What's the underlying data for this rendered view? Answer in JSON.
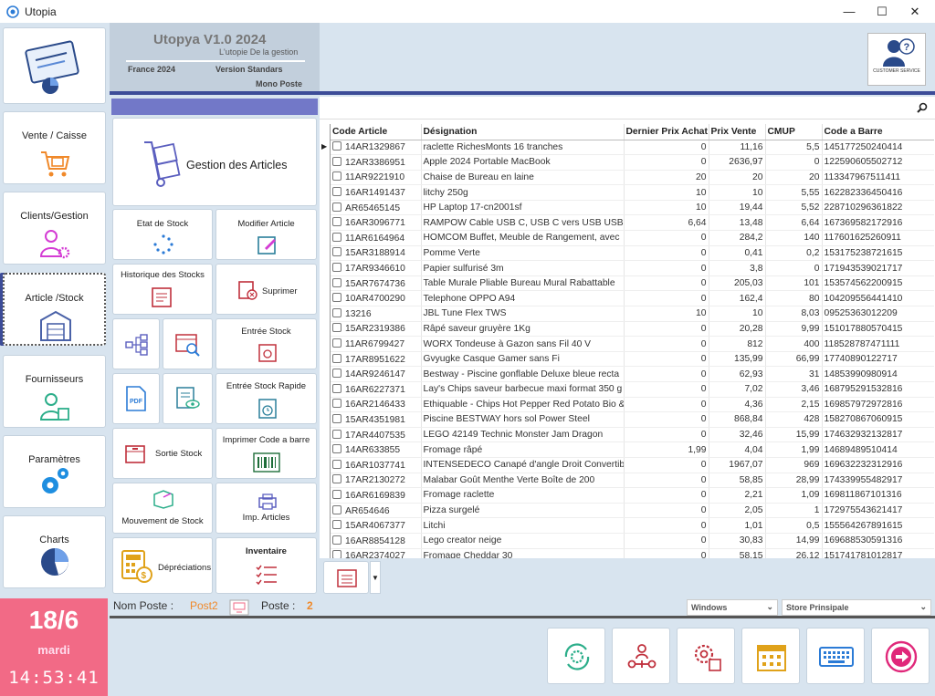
{
  "window": {
    "title": "Utopia",
    "minimize": "—",
    "maximize": "☐",
    "close": "✕"
  },
  "sidebar": {
    "items": [
      {
        "label": "Vente / Caisse"
      },
      {
        "label": "Clients/Gestion"
      },
      {
        "label": "Article /Stock"
      },
      {
        "label": "Fournisseurs"
      },
      {
        "label": "Paramètres"
      },
      {
        "label": "Charts"
      }
    ]
  },
  "header": {
    "title": "Utopya V1.0 2024",
    "subtitle": "L'utopie De la gestion",
    "country": "France 2024",
    "version": "Version Standars",
    "mode": "Mono Poste",
    "customer_service": "CUSTOMER SERVICE"
  },
  "menu": {
    "gestion": "Gestion des Articles",
    "etat_stock": "Etat de Stock",
    "modifier": "Modifier Article",
    "historique": "Historique des Stocks",
    "supprimer": "Suprimer",
    "entree": "Entrée Stock",
    "entree_rapide": "Entrée Stock Rapide",
    "sortie": "Sortie Stock",
    "imprimer_cb": "Imprimer Code a barre",
    "mouvement": "Mouvement de Stock",
    "imp_articles": "Imp. Articles",
    "depreciations": "Dépréciations",
    "inventaire": "Inventaire"
  },
  "table": {
    "columns": [
      "Code Article",
      "Désignation",
      "Dernier Prix Achat",
      "Prix Vente",
      "CMUP",
      "Code a Barre"
    ],
    "rows": [
      [
        "14AR1329867",
        "raclette RichesMonts 16 tranches",
        "0",
        "11,16",
        "5,5",
        "145177250240414"
      ],
      [
        "12AR3386951",
        "Apple 2024 Portable MacBook",
        "0",
        "2636,97",
        "0",
        "122590605502712"
      ],
      [
        "11AR9221910",
        "Chaise de Bureau en laine",
        "20",
        "20",
        "20",
        "113347967511411"
      ],
      [
        "16AR1491437",
        "litchy 250g",
        "10",
        "10",
        "5,55",
        "162282336450416"
      ],
      [
        "AR65465145",
        "HP Laptop 17-cn2001sf",
        "10",
        "19,44",
        "5,52",
        "228710296361822"
      ],
      [
        "16AR3096771",
        "RAMPOW Cable USB C, USB C vers USB USB3.",
        "6,64",
        "13,48",
        "6,64",
        "167369582172916"
      ],
      [
        "11AR6164964",
        "HOMCOM Buffet, Meuble de Rangement, avec",
        "0",
        "284,2",
        "140",
        "117601625260911"
      ],
      [
        "15AR3188914",
        "Pomme Verte",
        "0",
        "0,41",
        "0,2",
        "153175238721615"
      ],
      [
        "17AR9346610",
        "Papier sulfurisé 3m",
        "0",
        "3,8",
        "0",
        "171943539021717"
      ],
      [
        "15AR7674736",
        "Table Murale Pliable Bureau Mural Rabattable",
        "0",
        "205,03",
        "101",
        "153574562200915"
      ],
      [
        "10AR4700290",
        "Telephone OPPO A94",
        "0",
        "162,4",
        "80",
        "104209556441410"
      ],
      [
        "13216",
        "JBL Tune Flex TWS",
        "10",
        "10",
        "8,03",
        "09525363012209"
      ],
      [
        "15AR2319386",
        "Râpé saveur gruyère 1Kg",
        "0",
        "20,28",
        "9,99",
        "151017880570415"
      ],
      [
        "11AR6799427",
        "WORX Tondeuse à Gazon sans Fil 40 V",
        "0",
        "812",
        "400",
        "118528787471111"
      ],
      [
        "17AR8951622",
        "Gvyugke Casque Gamer sans Fi",
        "0",
        "135,99",
        "66,99",
        "17740890122717"
      ],
      [
        "14AR9246147",
        "Bestway - Piscine gonflable Deluxe bleue recta",
        "0",
        "62,93",
        "31",
        "14853990980914"
      ],
      [
        "16AR6227371",
        "Lay's Chips saveur barbecue maxi format 350 g",
        "0",
        "7,02",
        "3,46",
        "168795291532816"
      ],
      [
        "16AR2146433",
        "Ethiquable - Chips Hot Pepper Red Potato Bio &",
        "0",
        "4,36",
        "2,15",
        "169857972972816"
      ],
      [
        "15AR4351981",
        "Piscine BESTWAY hors sol Power Steel",
        "0",
        "868,84",
        "428",
        "158270867060915"
      ],
      [
        "17AR4407535",
        "LEGO 42149 Technic Monster Jam Dragon",
        "0",
        "32,46",
        "15,99",
        "174632932132817"
      ],
      [
        "14AR633855",
        "Fromage râpé",
        "1,99",
        "4,04",
        "1,99",
        "14689489510414"
      ],
      [
        "16AR1037741",
        "INTENSEDECO Canapé d'angle Droit Convertib",
        "0",
        "1967,07",
        "969",
        "169632232312916"
      ],
      [
        "17AR2130272",
        "Malabar Goût Menthe Verte Boîte de 200",
        "0",
        "58,85",
        "28,99",
        "174339955482917"
      ],
      [
        "16AR6169839",
        "Fromage raclette",
        "0",
        "2,21",
        "1,09",
        "169811867101316"
      ],
      [
        "AR654646",
        "Pizza surgelé",
        "0",
        "2,05",
        "1",
        "172975543621417"
      ],
      [
        "15AR4067377",
        "Litchi",
        "0",
        "1,01",
        "0,5",
        "155564267891615"
      ],
      [
        "16AR8854128",
        "Lego creator neige",
        "0",
        "30,83",
        "14,99",
        "169688530591316"
      ],
      [
        "16AR2374027",
        "Fromage Cheddar 30",
        "0",
        "58,15",
        "26,12",
        "151741781012817"
      ]
    ]
  },
  "status": {
    "nom_poste_label": "Nom Poste :",
    "nom_poste": "Post2",
    "poste_label": "Poste :",
    "poste": "2",
    "os_combo": "Windows",
    "store_combo": "Store Prinsipale"
  },
  "date": {
    "day": "18/6",
    "weekday": "mardi",
    "time": "14:53:41"
  },
  "colors": {
    "accent": "#3c4c98",
    "pink": "#f26a86",
    "orange": "#f0892a"
  }
}
